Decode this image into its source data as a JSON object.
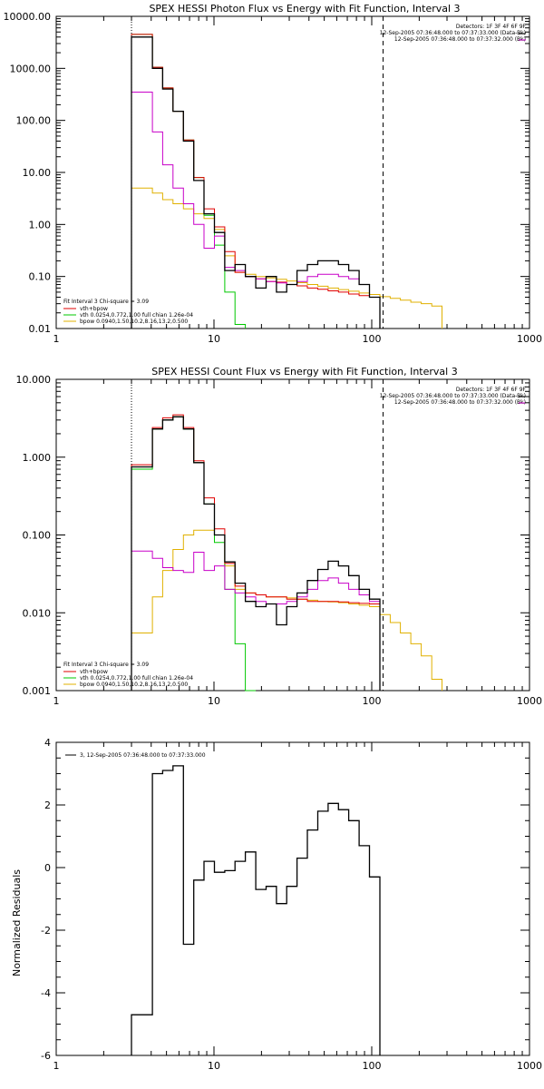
{
  "colors": {
    "observed": "#000000",
    "total": "#e00000",
    "vth": "#00c800",
    "bpow": "#e0b000",
    "background": "#c800c8",
    "dash": "#000000"
  },
  "chart_data": [
    {
      "type": "line",
      "title": "SPEX HESSI Photon Flux vs Energy with Fit Function, Interval 3",
      "xlabel": "",
      "ylabel": "",
      "xscale": "log",
      "yscale": "log",
      "xlim": [
        1,
        1000
      ],
      "ylim": [
        0.01,
        10000
      ],
      "x_ticks": [
        "1",
        "10",
        "100",
        "1000"
      ],
      "y_ticks": [
        "0.01",
        "0.10",
        "1.00",
        "10.00",
        "100.00",
        "1000.00",
        "10000.00"
      ],
      "header_lines": [
        "Detectors: 1F 3F 4F 6F 9F",
        "12-Sep-2005 07:36:48.000 to 07:37:33.000 (Data-Bk)",
        "12-Sep-2005 07:36:48.000 to 07:37:32.000 (Bk)"
      ],
      "fit_lines": [
        "Fit Interval 3   Chi-square = 3.09",
        "vth+bpow",
        "vth 0.0254,0.772,1.00  full chian 1.26e-04",
        "bpow 0.0940,1.50,10.2,8.16,13.2,0.500"
      ],
      "bin_edges": [
        3,
        3.5,
        4.07,
        4.73,
        5.5,
        6.4,
        7.44,
        8.65,
        10.06,
        11.7,
        13.6,
        15.8,
        18.4,
        21.4,
        24.9,
        28.9,
        33.6,
        39.1,
        45.5,
        52.9,
        61.5,
        71.5,
        83.2,
        96.8,
        112.6,
        131,
        152,
        177,
        206,
        240,
        279
      ],
      "series": [
        {
          "key": "observed",
          "values": [
            4000,
            4000,
            1000,
            400,
            150,
            40,
            7,
            1.6,
            0.7,
            0.13,
            0.17,
            0.1,
            0.06,
            0.1,
            0.05,
            0.07,
            0.13,
            0.17,
            0.2,
            0.2,
            0.17,
            0.13,
            0.07,
            0.04,
            null,
            null,
            null,
            null,
            null,
            null
          ]
        },
        {
          "key": "background",
          "values": [
            350,
            350,
            60,
            14,
            5,
            2.5,
            1,
            0.35,
            0.6,
            0.15,
            0.13,
            0.1,
            0.09,
            0.08,
            0.075,
            0.07,
            0.08,
            0.1,
            0.11,
            0.11,
            0.1,
            0.09,
            0.07,
            0.04,
            null,
            null,
            null,
            null,
            null,
            null
          ]
        },
        {
          "key": "total",
          "values": [
            4500,
            4500,
            1050,
            420,
            150,
            42,
            8,
            2,
            0.9,
            0.3,
            0.12,
            0.1,
            0.09,
            0.08,
            0.078,
            0.07,
            0.066,
            0.06,
            0.057,
            0.053,
            0.05,
            0.046,
            0.043,
            0.04,
            null,
            null,
            null,
            null,
            null,
            null
          ]
        },
        {
          "key": "vth",
          "values": [
            4500,
            4500,
            1050,
            420,
            150,
            42,
            8,
            1.5,
            0.4,
            0.05,
            0.012,
            null,
            null,
            null,
            null,
            null,
            null,
            null,
            null,
            null,
            null,
            null,
            null,
            null,
            null,
            null,
            null,
            null,
            null,
            null
          ]
        },
        {
          "key": "bpow",
          "values": [
            5,
            5,
            4,
            3,
            2.5,
            2,
            1.6,
            1.3,
            0.8,
            0.25,
            0.12,
            0.11,
            0.1,
            0.094,
            0.088,
            0.082,
            0.076,
            0.07,
            0.065,
            0.06,
            0.056,
            0.052,
            0.048,
            0.045,
            0.041,
            0.038,
            0.035,
            0.032,
            0.03,
            0.027
          ]
        }
      ],
      "vlines": [
        {
          "x": 3,
          "style": "dotted"
        },
        {
          "x": 118,
          "style": "dashed"
        }
      ]
    },
    {
      "type": "line",
      "title": "SPEX HESSI Count Flux vs Energy with Fit Function, Interval 3",
      "xlabel": "",
      "ylabel": "",
      "xscale": "log",
      "yscale": "log",
      "xlim": [
        1,
        1000
      ],
      "ylim": [
        0.001,
        10
      ],
      "x_ticks": [
        "1",
        "10",
        "100",
        "1000"
      ],
      "y_ticks": [
        "0.001",
        "0.010",
        "0.100",
        "1.000",
        "10.000"
      ],
      "header_lines": [
        "Detectors: 1F 3F 4F 6F 9F",
        "12-Sep-2005 07:36:48.000 to 07:37:33.000 (Data-Bk)",
        "12-Sep-2005 07:36:48.000 to 07:37:32.000 (Bk)"
      ],
      "fit_lines": [
        "Fit Interval 3   Chi-square = 3.09",
        "vth+bpow",
        "vth 0.0254,0.772,1.00  full chian 1.26e-04",
        "bpow 0.0940,1.50,10.2,8.16,13.2,0.500"
      ],
      "bin_edges": [
        3,
        3.5,
        4.07,
        4.73,
        5.5,
        6.4,
        7.44,
        8.65,
        10.06,
        11.7,
        13.6,
        15.8,
        18.4,
        21.4,
        24.9,
        28.9,
        33.6,
        39.1,
        45.5,
        52.9,
        61.5,
        71.5,
        83.2,
        96.8,
        112.6,
        131,
        152,
        177,
        206,
        240,
        279
      ],
      "series": [
        {
          "key": "observed",
          "values": [
            0.75,
            0.75,
            2.3,
            3.0,
            3.3,
            2.3,
            0.85,
            0.25,
            0.1,
            0.045,
            0.024,
            0.014,
            0.012,
            0.013,
            0.007,
            0.012,
            0.018,
            0.026,
            0.036,
            0.046,
            0.04,
            0.03,
            0.02,
            0.015,
            null,
            null,
            null,
            null,
            null,
            null
          ]
        },
        {
          "key": "background",
          "values": [
            0.062,
            0.062,
            0.05,
            0.038,
            0.035,
            0.033,
            0.06,
            0.035,
            0.04,
            0.02,
            0.018,
            0.016,
            0.014,
            0.013,
            0.013,
            0.014,
            0.016,
            0.02,
            0.026,
            0.028,
            0.024,
            0.02,
            0.017,
            0.014,
            null,
            null,
            null,
            null,
            null,
            null
          ]
        },
        {
          "key": "total",
          "values": [
            0.8,
            0.8,
            2.4,
            3.2,
            3.5,
            2.4,
            0.9,
            0.3,
            0.12,
            0.043,
            0.022,
            0.018,
            0.017,
            0.016,
            0.016,
            0.015,
            0.015,
            0.014,
            0.014,
            0.014,
            0.0138,
            0.0135,
            0.0132,
            0.013,
            null,
            null,
            null,
            null,
            null,
            null
          ]
        },
        {
          "key": "vth",
          "values": [
            0.7,
            0.7,
            2.3,
            3.0,
            3.3,
            2.3,
            0.85,
            0.25,
            0.08,
            0.02,
            0.004,
            0.001,
            null,
            null,
            null,
            null,
            null,
            null,
            null,
            null,
            null,
            null,
            null,
            null,
            null,
            null,
            null,
            null,
            null,
            null
          ]
        },
        {
          "key": "bpow",
          "values": [
            0.0055,
            0.0055,
            0.016,
            0.035,
            0.065,
            0.1,
            0.115,
            0.115,
            0.1,
            0.04,
            0.02,
            0.018,
            0.017,
            0.016,
            0.016,
            0.0155,
            0.015,
            0.0145,
            0.014,
            0.0138,
            0.0135,
            0.013,
            0.0125,
            0.012,
            0.0095,
            0.0075,
            0.0055,
            0.004,
            0.0028,
            0.0014
          ]
        }
      ],
      "vlines": [
        {
          "x": 3,
          "style": "dotted"
        },
        {
          "x": 118,
          "style": "dashed"
        }
      ]
    },
    {
      "type": "line",
      "title": "",
      "xlabel": "",
      "ylabel": "Normalized Residuals",
      "xscale": "log",
      "yscale": "linear",
      "xlim": [
        1,
        1000
      ],
      "ylim": [
        -6,
        4
      ],
      "x_ticks": [
        "1",
        "10",
        "100",
        "1000"
      ],
      "y_ticks": [
        "-6",
        "-4",
        "-2",
        "0",
        "2",
        "4"
      ],
      "legend": "3, 12-Sep-2005 07:36:48.000 to 07:37:33.000",
      "bin_edges": [
        3,
        3.5,
        4.07,
        4.73,
        5.5,
        6.4,
        7.44,
        8.65,
        10.06,
        11.7,
        13.6,
        15.8,
        18.4,
        21.4,
        24.9,
        28.9,
        33.6,
        39.1,
        45.5,
        52.9,
        61.5,
        71.5,
        83.2,
        96.8,
        112.6
      ],
      "residuals": [
        -4.7,
        -4.7,
        3.0,
        3.1,
        3.25,
        -2.45,
        -0.4,
        0.2,
        -0.15,
        -0.1,
        0.2,
        0.5,
        -0.7,
        -0.6,
        -1.15,
        -0.6,
        0.3,
        1.2,
        1.8,
        2.05,
        1.85,
        1.5,
        0.7,
        -0.3
      ],
      "bottom_value": -6
    }
  ]
}
